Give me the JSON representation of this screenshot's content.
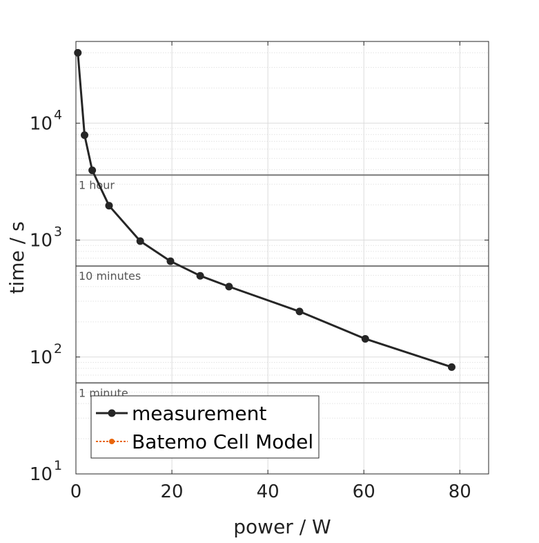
{
  "chart_data": {
    "type": "line",
    "xlabel": "power / W",
    "ylabel": "time / s",
    "xlim": [
      0,
      86
    ],
    "ylim": [
      10,
      50000
    ],
    "yscale": "log",
    "grid": true,
    "x_ticks": [
      0,
      20,
      40,
      60,
      80
    ],
    "x_tick_labels": [
      "0",
      "20",
      "40",
      "60",
      "80"
    ],
    "y_ticks": [
      10,
      100,
      1000,
      10000
    ],
    "y_tick_labels": [
      {
        "base": "10",
        "exp": "1"
      },
      {
        "base": "10",
        "exp": "2"
      },
      {
        "base": "10",
        "exp": "3"
      },
      {
        "base": "10",
        "exp": "4"
      }
    ],
    "series": [
      {
        "name": "measurement",
        "color": "#262626",
        "x": [
          0.4,
          1.8,
          3.4,
          6.9,
          13.4,
          19.7,
          25.9,
          31.9,
          46.6,
          60.3,
          78.3
        ],
        "y": [
          40000,
          7900,
          3950,
          1970,
          980,
          660,
          495,
          400,
          245,
          143,
          82
        ]
      },
      {
        "name": "Batemo Cell Model",
        "color": "#E8650A",
        "x": [],
        "y": []
      }
    ],
    "reference_lines": [
      {
        "y": 3600,
        "label": "1 hour"
      },
      {
        "y": 600,
        "label": "10 minutes"
      },
      {
        "y": 60,
        "label": "1 minute"
      }
    ],
    "legend_position": "bottom-left"
  }
}
